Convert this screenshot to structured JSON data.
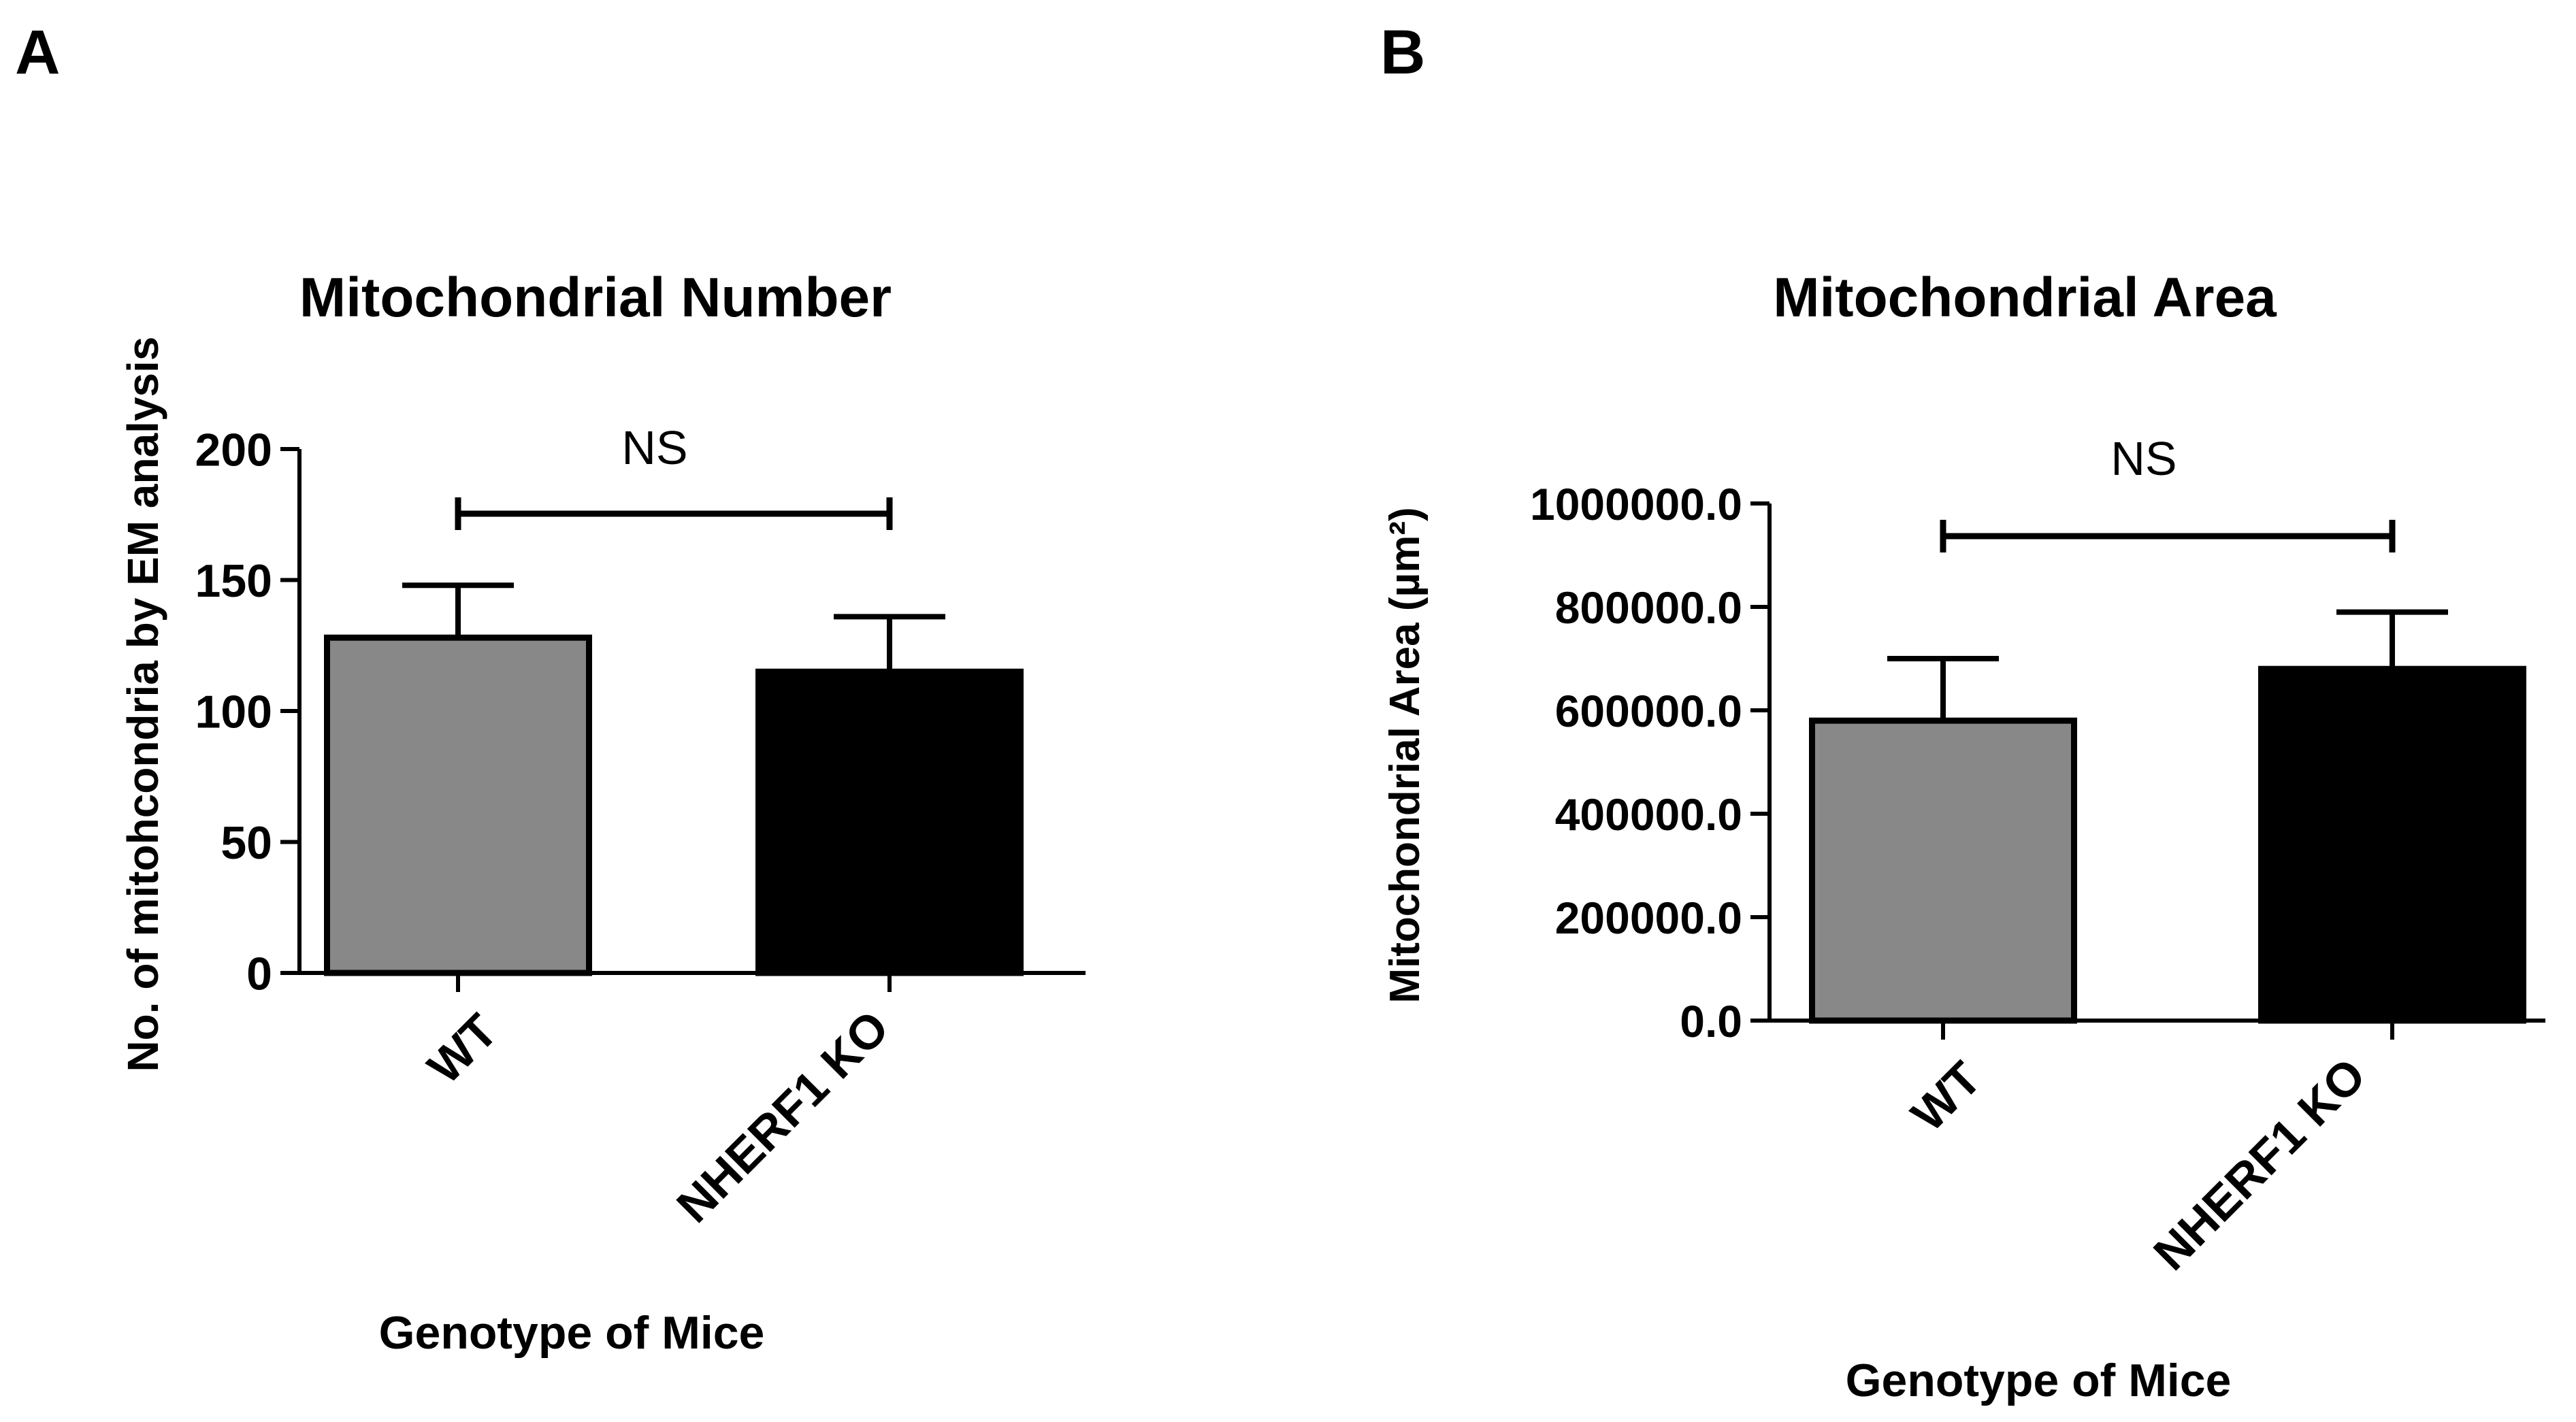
{
  "panels": [
    {
      "label": "A"
    },
    {
      "label": "B"
    }
  ],
  "chart_data": [
    {
      "type": "bar",
      "title": "Mitochondrial Number",
      "xlabel": "Genotype of Mice",
      "ylabel": "No. of mitohcondria by EM analysis",
      "ylim": [
        0,
        200
      ],
      "yticks": [
        0,
        50,
        100,
        150,
        200
      ],
      "ytick_labels": [
        "0",
        "50",
        "100",
        "150",
        "200"
      ],
      "categories": [
        "WT",
        "NHERF1 KO"
      ],
      "values": [
        128,
        115
      ],
      "errors": [
        20,
        21
      ],
      "colors": [
        "#888888",
        "#000000"
      ],
      "significance": {
        "label": "NS",
        "between": [
          "WT",
          "NHERF1 KO"
        ]
      }
    },
    {
      "type": "bar",
      "title": "Mitochondrial Area",
      "xlabel": "Genotype of Mice",
      "ylabel": "Mitochondrial Area (µm²)",
      "ylim": [
        0,
        1000000
      ],
      "yticks": [
        0,
        200000,
        400000,
        600000,
        800000,
        1000000
      ],
      "ytick_labels": [
        "0.0",
        "200000.0",
        "400000.0",
        "600000.0",
        "800000.0",
        "1000000.0"
      ],
      "categories": [
        "WT",
        "NHERF1 KO"
      ],
      "values": [
        580000,
        680000
      ],
      "errors": [
        120000,
        110000
      ],
      "colors": [
        "#888888",
        "#000000"
      ],
      "significance": {
        "label": "NS",
        "between": [
          "WT",
          "NHERF1 KO"
        ]
      }
    }
  ]
}
